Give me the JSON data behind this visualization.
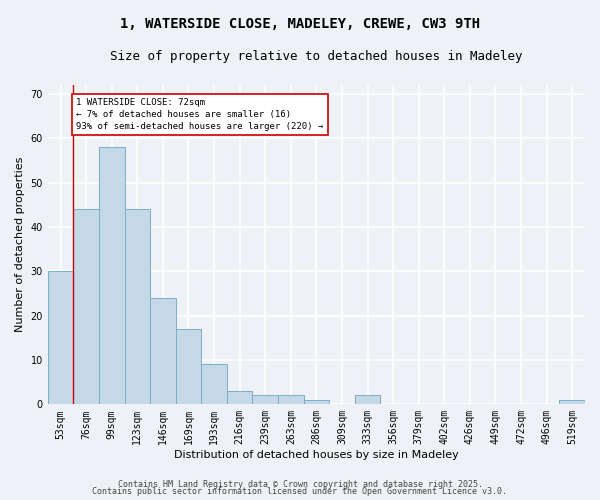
{
  "title": "1, WATERSIDE CLOSE, MADELEY, CREWE, CW3 9TH",
  "subtitle": "Size of property relative to detached houses in Madeley",
  "xlabel": "Distribution of detached houses by size in Madeley",
  "ylabel": "Number of detached properties",
  "categories": [
    "53sqm",
    "76sqm",
    "99sqm",
    "123sqm",
    "146sqm",
    "169sqm",
    "193sqm",
    "216sqm",
    "239sqm",
    "263sqm",
    "286sqm",
    "309sqm",
    "333sqm",
    "356sqm",
    "379sqm",
    "402sqm",
    "426sqm",
    "449sqm",
    "472sqm",
    "496sqm",
    "519sqm"
  ],
  "values": [
    30,
    44,
    58,
    44,
    24,
    17,
    9,
    3,
    2,
    2,
    1,
    0,
    2,
    0,
    0,
    0,
    0,
    0,
    0,
    0,
    1
  ],
  "bar_color": "#c5d8e8",
  "bar_edge_color": "#7aafc8",
  "background_color": "#eef2f7",
  "grid_color": "#ffffff",
  "annotation_text": "1 WATERSIDE CLOSE: 72sqm\n← 7% of detached houses are smaller (16)\n93% of semi-detached houses are larger (220) →",
  "annotation_box_color": "#ffffff",
  "annotation_box_edge": "#cc0000",
  "vline_x": 0.5,
  "vline_color": "#cc0000",
  "ylim": [
    0,
    72
  ],
  "yticks": [
    0,
    10,
    20,
    30,
    40,
    50,
    60,
    70
  ],
  "footer1": "Contains HM Land Registry data © Crown copyright and database right 2025.",
  "footer2": "Contains public sector information licensed under the Open Government Licence v3.0.",
  "title_fontsize": 10,
  "subtitle_fontsize": 9,
  "axis_label_fontsize": 8,
  "tick_fontsize": 7,
  "annot_fontsize": 6.5,
  "footer_fontsize": 6
}
